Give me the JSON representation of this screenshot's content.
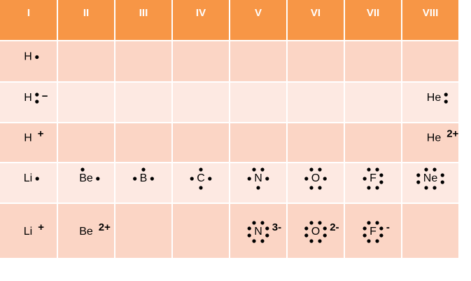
{
  "header": [
    "I",
    "II",
    "III",
    "IV",
    "V",
    "VI",
    "VII",
    "VIII"
  ],
  "rows": [
    [
      {
        "symbol": "H"
      },
      null,
      null,
      null,
      null,
      null,
      null,
      null
    ],
    [
      {
        "symbol": "H",
        "charge": "−"
      },
      null,
      null,
      null,
      null,
      null,
      null,
      {
        "symbol": "He"
      }
    ],
    [
      {
        "symbol": "H",
        "charge": "+"
      },
      null,
      null,
      null,
      null,
      null,
      null,
      {
        "symbol": "He",
        "charge": "2+"
      }
    ],
    [
      {
        "symbol": "Li"
      },
      {
        "symbol": "Be"
      },
      {
        "symbol": "B"
      },
      {
        "symbol": "C"
      },
      {
        "symbol": "N"
      },
      {
        "symbol": "O"
      },
      {
        "symbol": "F"
      },
      {
        "symbol": "Ne"
      }
    ],
    [
      {
        "symbol": "Li",
        "charge": "+"
      },
      {
        "symbol": "Be",
        "charge": "2+"
      },
      null,
      null,
      {
        "symbol": "N",
        "charge": "3-"
      },
      {
        "symbol": "O",
        "charge": "2-"
      },
      {
        "symbol": "F",
        "charge": "-"
      },
      null
    ]
  ]
}
